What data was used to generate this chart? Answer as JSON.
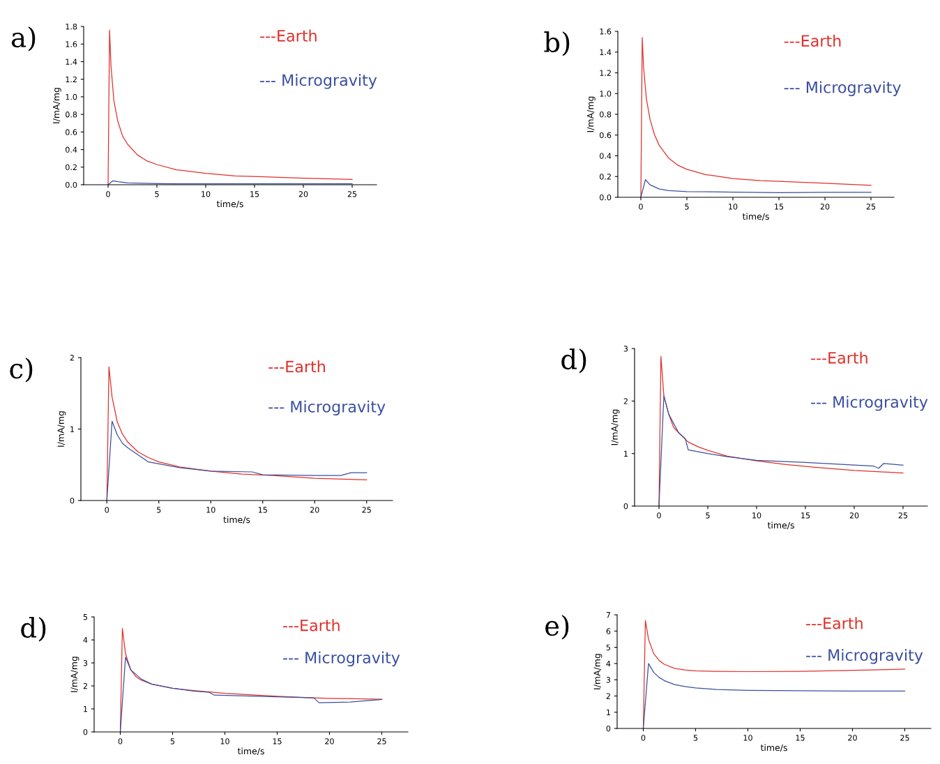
{
  "chart_data": [
    {
      "type": "line",
      "title": "a)",
      "xlabel": "time/s",
      "ylabel": "I/mA/mg",
      "legend": "top right",
      "grid": false,
      "xlim": [
        -2.5,
        27.5
      ],
      "xticks": [
        0,
        5,
        10,
        15,
        20,
        25
      ],
      "ylim": [
        0,
        1.8
      ],
      "yticks": [
        {
          "value": 0,
          "label": "0.0"
        },
        {
          "value": 0.2,
          "label": "0.2"
        },
        {
          "value": 0.4,
          "label": "0.4"
        },
        {
          "value": 0.6,
          "label": "0.6"
        },
        {
          "value": 0.8,
          "label": "0.8"
        },
        {
          "value": 1,
          "label": "1.0"
        },
        {
          "value": 1.2,
          "label": "1.2"
        },
        {
          "value": 1.4,
          "label": "1.4"
        },
        {
          "value": 1.6,
          "label": "1.6"
        },
        {
          "value": 1.8,
          "label": "1.8"
        }
      ],
      "series": [
        {
          "name": "---Earth",
          "color": "#e0302a",
          "x": [
            0,
            0.15,
            0.3,
            0.6,
            1,
            1.5,
            2,
            3,
            4,
            5,
            7,
            10,
            13,
            16,
            20,
            25
          ],
          "values": [
            0,
            1.76,
            1.35,
            0.95,
            0.72,
            0.55,
            0.46,
            0.34,
            0.27,
            0.23,
            0.17,
            0.13,
            0.1,
            0.09,
            0.075,
            0.06
          ]
        },
        {
          "name": "--- Microgravity",
          "color": "#3a4fa0",
          "x": [
            0,
            0.5,
            1,
            2,
            5,
            10,
            15,
            20,
            25
          ],
          "values": [
            0,
            0.045,
            0.035,
            0.02,
            0.012,
            0.01,
            0.01,
            0.01,
            0.01
          ]
        }
      ]
    },
    {
      "type": "line",
      "title": "b)",
      "xlabel": "time/s",
      "ylabel": "I/mA/mg",
      "legend": "top right",
      "grid": false,
      "xlim": [
        -2.5,
        27.5
      ],
      "xticks": [
        0,
        5,
        10,
        15,
        20,
        25
      ],
      "ylim": [
        0,
        1.6
      ],
      "yticks": [
        {
          "value": 0,
          "label": "0.0"
        },
        {
          "value": 0.2,
          "label": "0.2"
        },
        {
          "value": 0.4,
          "label": "0.4"
        },
        {
          "value": 0.6,
          "label": "0.6"
        },
        {
          "value": 0.8,
          "label": "0.8"
        },
        {
          "value": 1,
          "label": "1.0"
        },
        {
          "value": 1.2,
          "label": "1.2"
        },
        {
          "value": 1.4,
          "label": "1.4"
        },
        {
          "value": 1.6,
          "label": "1.6"
        }
      ],
      "series": [
        {
          "name": "---Earth",
          "color": "#e0302a",
          "x": [
            0,
            0.15,
            0.3,
            0.6,
            1,
            1.5,
            2,
            3,
            4,
            5,
            7,
            10,
            13,
            16,
            20,
            25
          ],
          "values": [
            0,
            1.54,
            1.25,
            0.95,
            0.75,
            0.6,
            0.5,
            0.38,
            0.31,
            0.27,
            0.22,
            0.18,
            0.16,
            0.15,
            0.135,
            0.115
          ]
        },
        {
          "name": "--- Microgravity",
          "color": "#3a4fa0",
          "x": [
            0,
            0.5,
            1,
            2,
            3,
            5,
            10,
            15,
            20,
            25
          ],
          "values": [
            0,
            0.17,
            0.12,
            0.08,
            0.065,
            0.055,
            0.05,
            0.045,
            0.048,
            0.048
          ]
        }
      ]
    },
    {
      "type": "line",
      "title": "c)",
      "xlabel": "time/s",
      "ylabel": "I/mA/mg",
      "legend": "top right",
      "grid": false,
      "xlim": [
        -2.5,
        27.5
      ],
      "xticks": [
        0,
        5,
        10,
        15,
        20,
        25
      ],
      "ylim": [
        0,
        2
      ],
      "yticks": [
        0,
        1,
        2
      ],
      "series": [
        {
          "name": "---Earth",
          "color": "#e0302a",
          "x": [
            0,
            0.2,
            0.5,
            1,
            1.5,
            2,
            3,
            4,
            5,
            7,
            10,
            13,
            16,
            20,
            25
          ],
          "values": [
            0,
            1.87,
            1.45,
            1.1,
            0.93,
            0.82,
            0.68,
            0.6,
            0.54,
            0.47,
            0.41,
            0.37,
            0.35,
            0.31,
            0.29
          ]
        },
        {
          "name": "--- Microgravity",
          "color": "#3a4fa0",
          "x": [
            0,
            0.5,
            1,
            1.5,
            2,
            3,
            4,
            7,
            10,
            14,
            15,
            20,
            22.5,
            23.5,
            25
          ],
          "values": [
            0,
            1.11,
            0.92,
            0.8,
            0.74,
            0.64,
            0.54,
            0.46,
            0.41,
            0.4,
            0.36,
            0.35,
            0.35,
            0.39,
            0.39
          ]
        }
      ]
    },
    {
      "type": "line",
      "title": "d)",
      "xlabel": "time/s",
      "ylabel": "I/mA/mg",
      "legend": "top right",
      "grid": false,
      "xlim": [
        -2.5,
        27.5
      ],
      "xticks": [
        0,
        5,
        10,
        15,
        20,
        25
      ],
      "ylim": [
        0,
        3
      ],
      "yticks": [
        0,
        1,
        2,
        3
      ],
      "series": [
        {
          "name": "---Earth",
          "color": "#e0302a",
          "x": [
            0,
            0.2,
            0.5,
            1,
            1.5,
            2,
            3,
            4,
            5,
            7,
            10,
            13,
            16,
            20,
            25
          ],
          "values": [
            0,
            2.85,
            2.1,
            1.75,
            1.5,
            1.4,
            1.22,
            1.13,
            1.06,
            0.95,
            0.86,
            0.79,
            0.74,
            0.68,
            0.63
          ]
        },
        {
          "name": "--- Microgravity",
          "color": "#3a4fa0",
          "x": [
            0,
            0.5,
            1,
            2,
            2.7,
            3,
            5,
            7,
            10,
            15,
            20,
            22,
            22.5,
            23,
            25
          ],
          "values": [
            0,
            2.1,
            1.75,
            1.4,
            1.28,
            1.07,
            1.0,
            0.94,
            0.87,
            0.83,
            0.78,
            0.76,
            0.72,
            0.81,
            0.78
          ]
        }
      ]
    },
    {
      "type": "line",
      "title": "d)",
      "xlabel": "time/s",
      "ylabel": "I/mA/mg",
      "legend": "top right",
      "grid": false,
      "xlim": [
        -2.5,
        27.5
      ],
      "xticks": [
        0,
        5,
        10,
        15,
        20,
        25
      ],
      "ylim": [
        0,
        5
      ],
      "yticks": [
        0,
        1,
        2,
        3,
        4,
        5
      ],
      "series": [
        {
          "name": "---Earth",
          "color": "#e0302a",
          "x": [
            0,
            0.2,
            0.5,
            1,
            1.5,
            2,
            3,
            5,
            7,
            10,
            15,
            18.5,
            20,
            25
          ],
          "values": [
            0,
            4.5,
            3.4,
            2.7,
            2.4,
            2.25,
            2.08,
            1.9,
            1.8,
            1.68,
            1.55,
            1.48,
            1.46,
            1.42
          ]
        },
        {
          "name": "--- Microgravity",
          "color": "#3a4fa0",
          "x": [
            0,
            0.5,
            1,
            2,
            3,
            5,
            7,
            8.5,
            9,
            15,
            18.5,
            19,
            22,
            25
          ],
          "values": [
            0,
            3.25,
            2.7,
            2.3,
            2.08,
            1.9,
            1.78,
            1.72,
            1.6,
            1.53,
            1.48,
            1.27,
            1.3,
            1.41
          ]
        }
      ]
    },
    {
      "type": "line",
      "title": "e)",
      "xlabel": "time/s",
      "ylabel": "I/mA/mg",
      "legend": "top right",
      "grid": false,
      "xlim": [
        -2.5,
        27.5
      ],
      "xticks": [
        0,
        5,
        10,
        15,
        20,
        25
      ],
      "ylim": [
        0,
        7
      ],
      "yticks": [
        0,
        1,
        2,
        3,
        4,
        5,
        6,
        7
      ],
      "series": [
        {
          "name": "---Earth",
          "color": "#e0302a",
          "x": [
            0,
            0.2,
            0.5,
            1,
            1.5,
            2,
            3,
            4,
            5,
            7,
            10,
            15,
            20,
            25
          ],
          "values": [
            0,
            6.65,
            5.5,
            4.6,
            4.2,
            3.95,
            3.7,
            3.6,
            3.55,
            3.52,
            3.5,
            3.52,
            3.58,
            3.65
          ]
        },
        {
          "name": "--- Microgravity",
          "color": "#3a4fa0",
          "x": [
            0,
            0.5,
            1,
            1.5,
            2,
            3,
            4,
            5,
            7,
            10,
            15,
            20,
            25
          ],
          "values": [
            0,
            4.0,
            3.45,
            3.15,
            2.95,
            2.7,
            2.58,
            2.5,
            2.4,
            2.35,
            2.32,
            2.3,
            2.3
          ]
        }
      ]
    }
  ]
}
